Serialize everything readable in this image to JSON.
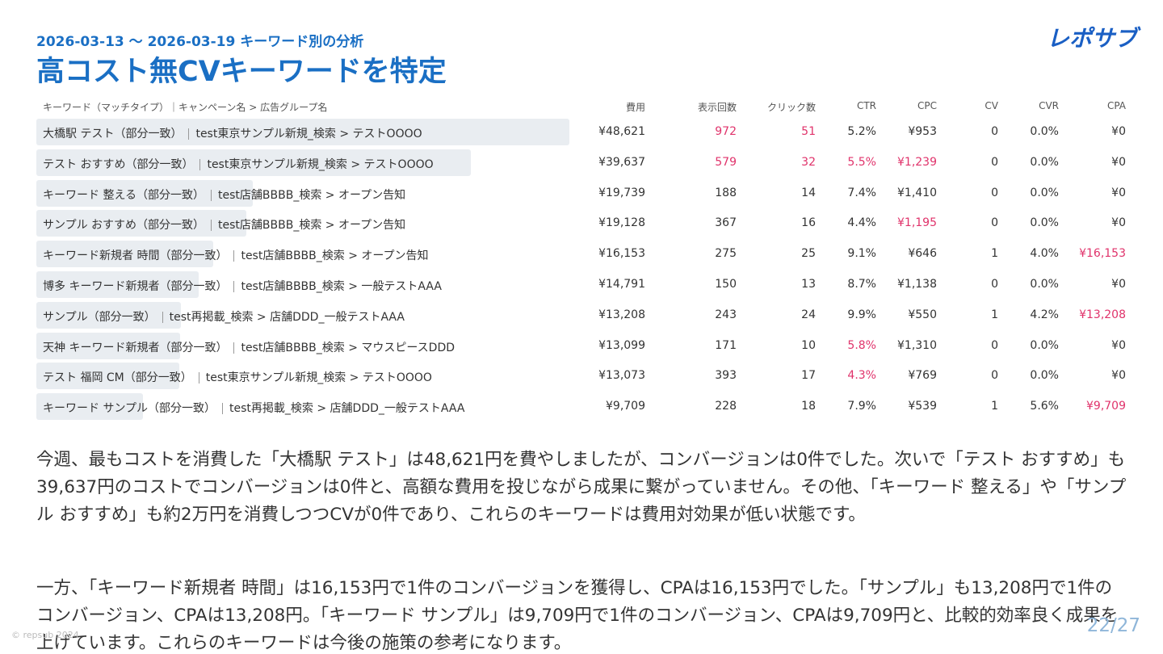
{
  "header": {
    "date_range": "2026-03-13 ～ 2026-03-19 キーワード別の分析",
    "title": "高コスト無CVキーワードを特定",
    "logo": "レポサブ"
  },
  "table": {
    "columns": [
      "キーワード（マッチタイプ）｜キャンペーン名 > 広告グループ名",
      "費用",
      "表示回数",
      "クリック数",
      "CTR",
      "CPC",
      "CV",
      "CVR",
      "CPA"
    ],
    "highlight_color": "#e0336b",
    "rows": [
      {
        "keyword": "大橋駅 テスト（部分一致）",
        "campaign": "test東京サンプル新規_検索 > テストOOOO",
        "cost": {
          "value": 48621,
          "label": "¥48,621"
        },
        "impressions": 972,
        "clicks": 51,
        "ctr": "5.2%",
        "cpc": "¥953",
        "cv": 0,
        "cvr": "0.0%",
        "cpa": "¥0",
        "highlight": [
          "impressions",
          "clicks"
        ]
      },
      {
        "keyword": "テスト おすすめ（部分一致）",
        "campaign": "test東京サンプル新規_検索 > テストOOOO",
        "cost": {
          "value": 39637,
          "label": "¥39,637"
        },
        "impressions": 579,
        "clicks": 32,
        "ctr": "5.5%",
        "cpc": "¥1,239",
        "cv": 0,
        "cvr": "0.0%",
        "cpa": "¥0",
        "highlight": [
          "impressions",
          "clicks",
          "ctr",
          "cpc"
        ]
      },
      {
        "keyword": "キーワード 整える（部分一致）",
        "campaign": "test店舗BBBB_検索 > オープン告知",
        "cost": {
          "value": 19739,
          "label": "¥19,739"
        },
        "impressions": 188,
        "clicks": 14,
        "ctr": "7.4%",
        "cpc": "¥1,410",
        "cv": 0,
        "cvr": "0.0%",
        "cpa": "¥0",
        "highlight": []
      },
      {
        "keyword": "サンプル おすすめ（部分一致）",
        "campaign": "test店舗BBBB_検索 > オープン告知",
        "cost": {
          "value": 19128,
          "label": "¥19,128"
        },
        "impressions": 367,
        "clicks": 16,
        "ctr": "4.4%",
        "cpc": "¥1,195",
        "cv": 0,
        "cvr": "0.0%",
        "cpa": "¥0",
        "highlight": [
          "cpc"
        ]
      },
      {
        "keyword": "キーワード新規者 時間（部分一致）",
        "campaign": "test店舗BBBB_検索 > オープン告知",
        "cost": {
          "value": 16153,
          "label": "¥16,153"
        },
        "impressions": 275,
        "clicks": 25,
        "ctr": "9.1%",
        "cpc": "¥646",
        "cv": 1,
        "cvr": "4.0%",
        "cpa": "¥16,153",
        "highlight": [
          "cpa"
        ]
      },
      {
        "keyword": "博多 キーワード新規者（部分一致）",
        "campaign": "test店舗BBBB_検索 > 一般テストAAA",
        "cost": {
          "value": 14791,
          "label": "¥14,791"
        },
        "impressions": 150,
        "clicks": 13,
        "ctr": "8.7%",
        "cpc": "¥1,138",
        "cv": 0,
        "cvr": "0.0%",
        "cpa": "¥0",
        "highlight": []
      },
      {
        "keyword": "サンプル（部分一致）",
        "campaign": "test再掲載_検索 > 店舗DDD_一般テストAAA",
        "cost": {
          "value": 13208,
          "label": "¥13,208"
        },
        "impressions": 243,
        "clicks": 24,
        "ctr": "9.9%",
        "cpc": "¥550",
        "cv": 1,
        "cvr": "4.2%",
        "cpa": "¥13,208",
        "highlight": [
          "cpa"
        ]
      },
      {
        "keyword": "天神 キーワード新規者（部分一致）",
        "campaign": "test店舗BBBB_検索 > マウスピースDDD",
        "cost": {
          "value": 13099,
          "label": "¥13,099"
        },
        "impressions": 171,
        "clicks": 10,
        "ctr": "5.8%",
        "cpc": "¥1,310",
        "cv": 0,
        "cvr": "0.0%",
        "cpa": "¥0",
        "highlight": [
          "ctr"
        ]
      },
      {
        "keyword": "テスト 福岡 CM（部分一致）",
        "campaign": "test東京サンプル新規_検索 > テストOOOO",
        "cost": {
          "value": 13073,
          "label": "¥13,073"
        },
        "impressions": 393,
        "clicks": 17,
        "ctr": "4.3%",
        "cpc": "¥769",
        "cv": 0,
        "cvr": "0.0%",
        "cpa": "¥0",
        "highlight": [
          "ctr"
        ]
      },
      {
        "keyword": "キーワード サンプル（部分一致）",
        "campaign": "test再掲載_検索 > 店舗DDD_一般テストAAA",
        "cost": {
          "value": 9709,
          "label": "¥9,709"
        },
        "impressions": 228,
        "clicks": 18,
        "ctr": "7.9%",
        "cpc": "¥539",
        "cv": 1,
        "cvr": "5.6%",
        "cpa": "¥9,709",
        "highlight": [
          "cpa"
        ]
      }
    ]
  },
  "paragraphs": [
    "今週、最もコストを消費した「大橋駅 テスト」は48,621円を費やしましたが、コンバージョンは0件でした。次いで「テスト おすすめ」も39,637円のコストでコンバージョンは0件と、高額な費用を投じながら成果に繋がっていません。その他、「キーワード 整える」や「サンプル おすすめ」も約2万円を消費しつつCVが0件であり、これらのキーワードは費用対効果が低い状態です。",
    "一方、「キーワード新規者 時間」は16,153円で1件のコンバージョンを獲得し、CPAは16,153円でした。「サンプル」も13,208円で1件のコンバージョン、CPAは13,208円。「キーワード サンプル」は9,709円で1件のコンバージョン、CPAは9,709円と、比較的効率良く成果を上げています。これらのキーワードは今後の施策の参考になります。"
  ],
  "footer": {
    "copyright": "© repsub 2024",
    "page": "22/27"
  }
}
